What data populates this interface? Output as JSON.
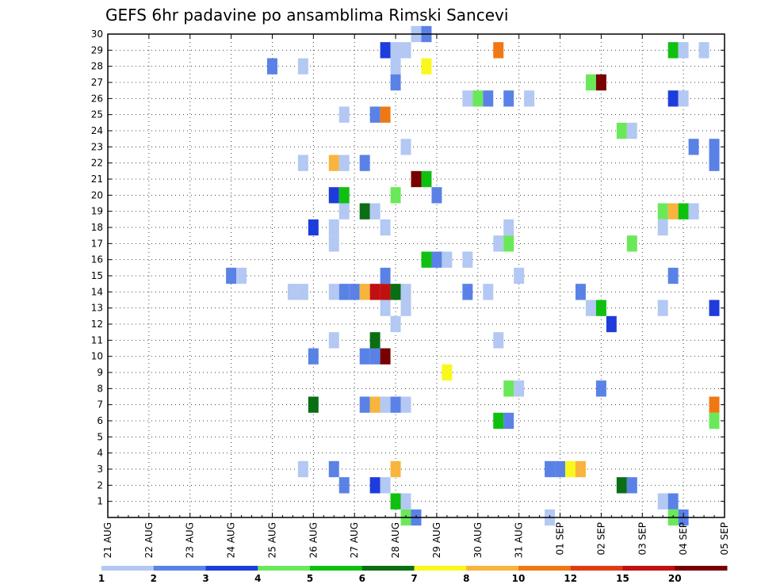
{
  "chart_data": {
    "type": "heatmap",
    "title": "GEFS 6hr padavine po ansamblima Rimski Sancevi",
    "xlabel": "",
    "ylabel": "",
    "x_tick_labels": [
      "21 AUG",
      "22 AUG",
      "23 AUG",
      "24 AUG",
      "25 AUG",
      "26 AUG",
      "27 AUG",
      "28 AUG",
      "29 AUG",
      "30 AUG",
      "31 AUG",
      "01 SEP",
      "02 SEP",
      "03 SEP",
      "04 SEP",
      "05 SEP"
    ],
    "y_tick_labels": [
      "1",
      "2",
      "3",
      "4",
      "5",
      "6",
      "7",
      "8",
      "9",
      "10",
      "11",
      "12",
      "13",
      "14",
      "15",
      "16",
      "17",
      "18",
      "19",
      "20",
      "21",
      "22",
      "23",
      "24",
      "25",
      "26",
      "27",
      "28",
      "29",
      "30"
    ],
    "x_range_days": [
      0,
      15
    ],
    "y_range_members": [
      0,
      30
    ],
    "grid": true,
    "legend": {
      "placement": "bottom",
      "tick_labels": [
        "1",
        "2",
        "3",
        "4",
        "5",
        "6",
        "7",
        "8",
        "10",
        "12",
        "15",
        "20"
      ],
      "colors": [
        "#b3c8f2",
        "#5a82e6",
        "#1e3cdc",
        "#6be85a",
        "#10c010",
        "#0a6e14",
        "#f8f81c",
        "#f8b43c",
        "#f07814",
        "#e03c14",
        "#c01010",
        "#780000"
      ]
    },
    "cells": [
      [
        30,
        7.5,
        1
      ],
      [
        30,
        7.75,
        2
      ],
      [
        29,
        6.75,
        3
      ],
      [
        29,
        7.0,
        1
      ],
      [
        29,
        7.25,
        1
      ],
      [
        29,
        9.5,
        10
      ],
      [
        29,
        13.75,
        5
      ],
      [
        29,
        14.0,
        1
      ],
      [
        29,
        14.5,
        1
      ],
      [
        28,
        4.0,
        2
      ],
      [
        28,
        4.75,
        1
      ],
      [
        28,
        7.0,
        1
      ],
      [
        28,
        7.75,
        7
      ],
      [
        27,
        7.0,
        2
      ],
      [
        27,
        11.75,
        4
      ],
      [
        27,
        12.0,
        20
      ],
      [
        26,
        8.75,
        1
      ],
      [
        26,
        9.0,
        4
      ],
      [
        26,
        9.25,
        2
      ],
      [
        26,
        9.75,
        2
      ],
      [
        26,
        10.25,
        1
      ],
      [
        26,
        13.75,
        3
      ],
      [
        26,
        14.0,
        1
      ],
      [
        25,
        5.75,
        1
      ],
      [
        25,
        6.5,
        2
      ],
      [
        25,
        6.75,
        10
      ],
      [
        24,
        12.5,
        4
      ],
      [
        24,
        12.75,
        1
      ],
      [
        23,
        7.25,
        1
      ],
      [
        23,
        14.25,
        2
      ],
      [
        23,
        14.75,
        2
      ],
      [
        22,
        4.75,
        1
      ],
      [
        22,
        5.5,
        8
      ],
      [
        22,
        5.75,
        1
      ],
      [
        22,
        6.25,
        2
      ],
      [
        22,
        14.75,
        2
      ],
      [
        21,
        7.5,
        20
      ],
      [
        21,
        7.75,
        5
      ],
      [
        20,
        5.5,
        3
      ],
      [
        20,
        5.75,
        5
      ],
      [
        20,
        7.0,
        4
      ],
      [
        20,
        8.0,
        2
      ],
      [
        19,
        5.75,
        1
      ],
      [
        19,
        6.25,
        6
      ],
      [
        19,
        6.5,
        1
      ],
      [
        19,
        13.5,
        4
      ],
      [
        19,
        13.75,
        8
      ],
      [
        19,
        14.0,
        5
      ],
      [
        19,
        14.25,
        1
      ],
      [
        18,
        5.0,
        3
      ],
      [
        18,
        5.5,
        1
      ],
      [
        18,
        6.75,
        1
      ],
      [
        18,
        9.75,
        1
      ],
      [
        18,
        13.5,
        1
      ],
      [
        17,
        5.5,
        1
      ],
      [
        17,
        9.5,
        1
      ],
      [
        17,
        9.75,
        4
      ],
      [
        17,
        12.75,
        4
      ],
      [
        16,
        7.75,
        5
      ],
      [
        16,
        8.0,
        2
      ],
      [
        16,
        8.25,
        1
      ],
      [
        16,
        8.75,
        1
      ],
      [
        15,
        3.0,
        2
      ],
      [
        15,
        3.25,
        1
      ],
      [
        15,
        6.75,
        2
      ],
      [
        15,
        10.0,
        1
      ],
      [
        15,
        13.75,
        2
      ],
      [
        14,
        4.5,
        1
      ],
      [
        14,
        4.75,
        1
      ],
      [
        14,
        5.5,
        1
      ],
      [
        14,
        5.75,
        2
      ],
      [
        14,
        6.0,
        2
      ],
      [
        14,
        6.25,
        8
      ],
      [
        14,
        6.5,
        15
      ],
      [
        14,
        6.75,
        15
      ],
      [
        14,
        7.0,
        6
      ],
      [
        14,
        7.25,
        1
      ],
      [
        14,
        8.75,
        2
      ],
      [
        14,
        9.25,
        1
      ],
      [
        14,
        11.5,
        2
      ],
      [
        13,
        6.75,
        1
      ],
      [
        13,
        7.25,
        1
      ],
      [
        13,
        11.75,
        1
      ],
      [
        13,
        12.0,
        5
      ],
      [
        13,
        13.5,
        1
      ],
      [
        13,
        14.75,
        3
      ],
      [
        12,
        7.0,
        1
      ],
      [
        12,
        12.25,
        3
      ],
      [
        11,
        5.5,
        1
      ],
      [
        11,
        6.5,
        6
      ],
      [
        11,
        9.5,
        1
      ],
      [
        10,
        5.0,
        2
      ],
      [
        10,
        6.25,
        2
      ],
      [
        10,
        6.5,
        2
      ],
      [
        10,
        6.75,
        20
      ],
      [
        9,
        8.25,
        7
      ],
      [
        8,
        9.75,
        4
      ],
      [
        8,
        10.0,
        1
      ],
      [
        8,
        12.0,
        2
      ],
      [
        7,
        5.0,
        6
      ],
      [
        7,
        6.25,
        2
      ],
      [
        7,
        6.5,
        8
      ],
      [
        7,
        6.75,
        1
      ],
      [
        7,
        7.0,
        2
      ],
      [
        7,
        7.25,
        1
      ],
      [
        7,
        14.75,
        10
      ],
      [
        6,
        9.5,
        5
      ],
      [
        6,
        9.75,
        2
      ],
      [
        6,
        14.75,
        4
      ],
      [
        3,
        4.75,
        1
      ],
      [
        3,
        5.5,
        2
      ],
      [
        3,
        7.0,
        8
      ],
      [
        3,
        10.75,
        2
      ],
      [
        3,
        11.0,
        2
      ],
      [
        3,
        11.25,
        7
      ],
      [
        3,
        11.5,
        8
      ],
      [
        2,
        5.75,
        2
      ],
      [
        2,
        6.5,
        3
      ],
      [
        2,
        6.75,
        1
      ],
      [
        2,
        12.5,
        6
      ],
      [
        2,
        12.75,
        2
      ],
      [
        1,
        7.0,
        5
      ],
      [
        1,
        7.25,
        1
      ],
      [
        1,
        13.5,
        1
      ],
      [
        1,
        13.75,
        2
      ],
      [
        0,
        7.25,
        4
      ],
      [
        0,
        7.5,
        2
      ],
      [
        0,
        10.75,
        1
      ],
      [
        0,
        13.75,
        4
      ],
      [
        0,
        14.0,
        2
      ]
    ]
  }
}
